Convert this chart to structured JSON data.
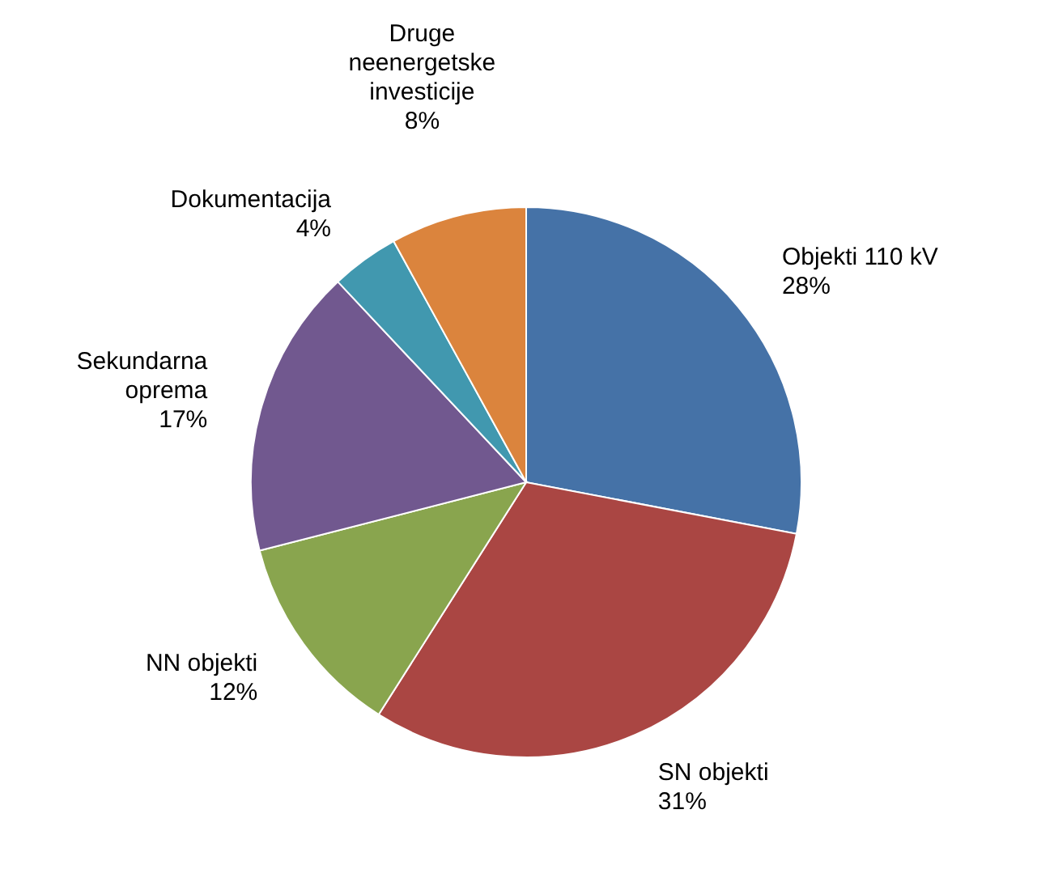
{
  "chart_data": {
    "type": "pie",
    "categories": [
      "Objekti 110 kV",
      "SN objekti",
      "NN objekti",
      "Sekundarna oprema",
      "Dokumentacija",
      "Druge neenergetske investicije"
    ],
    "values": [
      28,
      31,
      12,
      17,
      4,
      8
    ],
    "value_labels": [
      "28%",
      "31%",
      "12%",
      "17%",
      "4%",
      "8%"
    ],
    "colors": [
      "#4572a7",
      "#aa4643",
      "#89a54e",
      "#71588f",
      "#4198af",
      "#db843d"
    ]
  }
}
